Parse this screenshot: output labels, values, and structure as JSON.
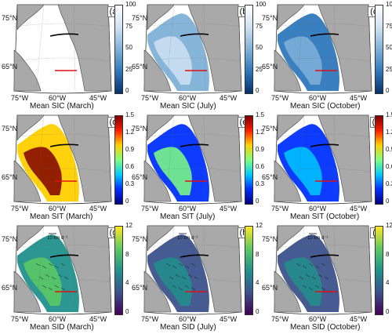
{
  "scales": {
    "sic": {
      "ticks": [
        "100",
        "75",
        "50",
        "25",
        "0"
      ],
      "colors": [
        "#ffffff",
        "#cfe1f2",
        "#7fb1d8",
        "#2f78bc",
        "#08306b"
      ]
    },
    "sit": {
      "ticks": [
        "1.5",
        "1.2",
        "0.9",
        "0.6",
        "0.3",
        "0"
      ],
      "colors": [
        "#800000",
        "#ff2000",
        "#ffd000",
        "#80ff80",
        "#00c8ff",
        "#0030ff",
        "#00007f"
      ]
    },
    "sid": {
      "ticks": [
        "12",
        "8",
        "4",
        "0"
      ],
      "colors": [
        "#fde725",
        "#5ec962",
        "#21918c",
        "#3b528b",
        "#440154"
      ]
    }
  },
  "lon_labels": [
    "75°W",
    "60°W",
    "45°W"
  ],
  "lat_labels": [
    "75°N",
    "65°N"
  ],
  "vector_key": "10 km d⁻¹",
  "panels": [
    {
      "label": "(a)",
      "title": "Mean SIC (March)",
      "scale": "sic",
      "level": 0.92
    },
    {
      "label": "(b)",
      "title": "Mean SIC (July)",
      "scale": "sic",
      "level": 0.55
    },
    {
      "label": "(c)",
      "title": "Mean SIC (October)",
      "scale": "sic",
      "level": 0.35
    },
    {
      "label": "(d)",
      "title": "Mean SIT (March)",
      "scale": "sit",
      "level": 0.75
    },
    {
      "label": "(e)",
      "title": "Mean SIT (July)",
      "scale": "sit",
      "level": 0.2
    },
    {
      "label": "(f)",
      "title": "Mean SIT (October)",
      "scale": "sit",
      "level": 0.15
    },
    {
      "label": "(g)",
      "title": "Mean SID (March)",
      "scale": "sid",
      "level": 0.45
    },
    {
      "label": "(h)",
      "title": "Mean SID (July)",
      "scale": "sid",
      "level": 0.15
    },
    {
      "label": "(i)",
      "title": "Mean SID (October)",
      "scale": "sid",
      "level": 0.15
    }
  ]
}
